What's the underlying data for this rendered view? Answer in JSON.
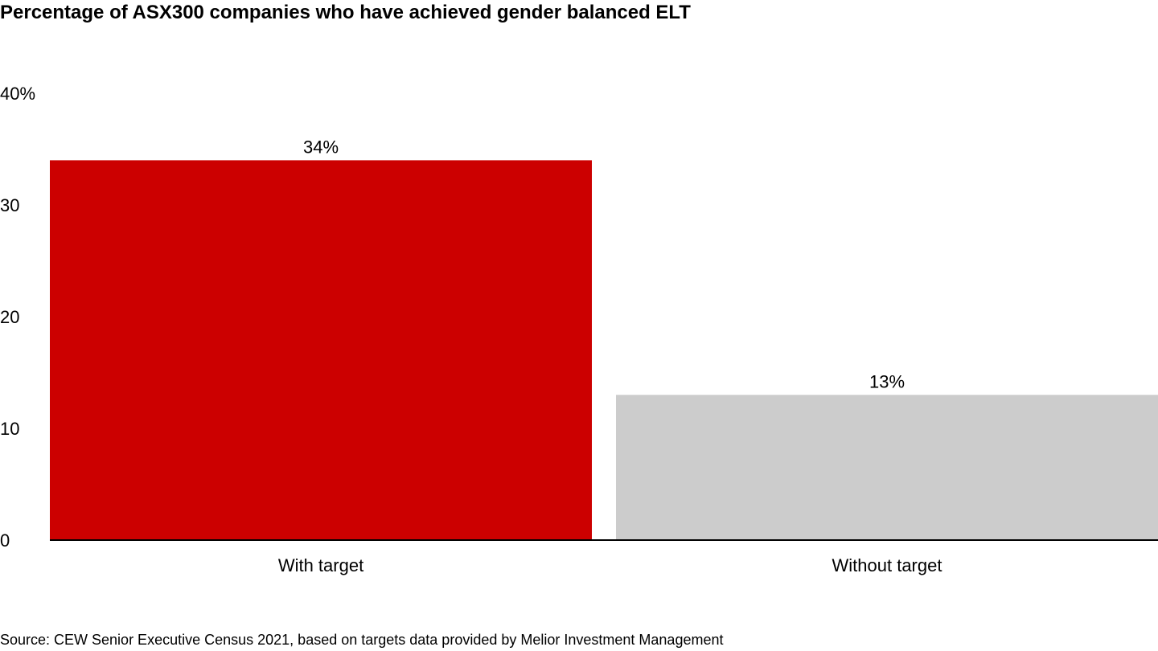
{
  "chart_data": {
    "type": "bar",
    "title": "Percentage of ASX300 companies who have achieved gender balanced ELT",
    "categories": [
      "With target",
      "Without target"
    ],
    "values": [
      34,
      13
    ],
    "data_labels": [
      "34%",
      "13%"
    ],
    "colors": [
      "#cc0000",
      "#cccccc"
    ],
    "y_ticks": [
      0,
      10,
      20,
      30,
      40
    ],
    "y_tick_labels": [
      "0",
      "10",
      "20",
      "30",
      "40%"
    ],
    "ylim": [
      0,
      40
    ],
    "xlabel": "",
    "ylabel": "",
    "grid": false,
    "legend": "none",
    "source": "Source: CEW Senior Executive Census 2021, based on targets data provided by Melior Investment Management"
  }
}
